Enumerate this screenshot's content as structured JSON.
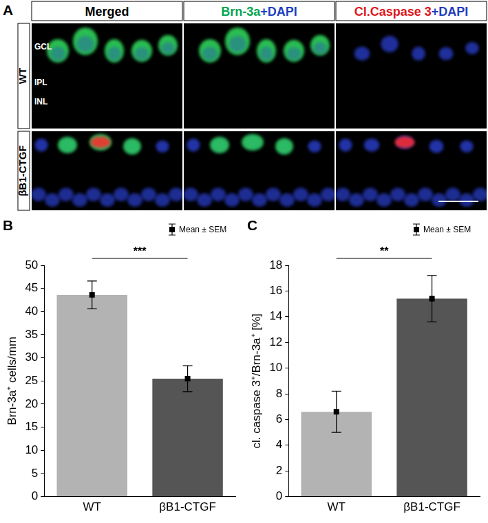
{
  "panel_a": {
    "panel_label": "A",
    "columns": [
      [
        {
          "text": "Merged",
          "color": "#000000"
        }
      ],
      [
        {
          "text": "Brn-3a",
          "color": "#00a651"
        },
        {
          "text": "+DAPI",
          "color": "#1f3fbf"
        }
      ],
      [
        {
          "text": "Cl.Caspase 3",
          "color": "#e0161b"
        },
        {
          "text": "+DAPI",
          "color": "#1f3fbf"
        }
      ]
    ],
    "rows": [
      "WT",
      "βB1-CTGF"
    ],
    "layer_labels": [
      "GCL",
      "IPL",
      "INL"
    ]
  },
  "chart_data": [
    {
      "type": "bar",
      "panel_label": "B",
      "legend_text": "Mean ± SEM",
      "categories": [
        "WT",
        "βB1-CTGF"
      ],
      "values": [
        43.6,
        25.5
      ],
      "errors": [
        3.0,
        2.8
      ],
      "colors": [
        "#b3b3b3",
        "#555555"
      ],
      "y_label": "Brn-3a⁺ cells/mm",
      "significance": "***",
      "ylim": [
        0,
        50
      ],
      "yticks": [
        0,
        5,
        10,
        15,
        20,
        25,
        30,
        35,
        40,
        45,
        50
      ],
      "grid": false
    },
    {
      "type": "bar",
      "panel_label": "C",
      "legend_text": "Mean ± SEM",
      "categories": [
        "WT",
        "βB1-CTGF"
      ],
      "values": [
        6.6,
        15.4
      ],
      "errors": [
        1.6,
        1.8
      ],
      "colors": [
        "#b3b3b3",
        "#555555"
      ],
      "y_label": "cl. caspase 3⁺/Brn-3a⁺ [%]",
      "significance": "**",
      "ylim": [
        0,
        18
      ],
      "yticks": [
        0,
        2,
        4,
        6,
        8,
        10,
        12,
        14,
        16,
        18
      ],
      "grid": false
    }
  ]
}
